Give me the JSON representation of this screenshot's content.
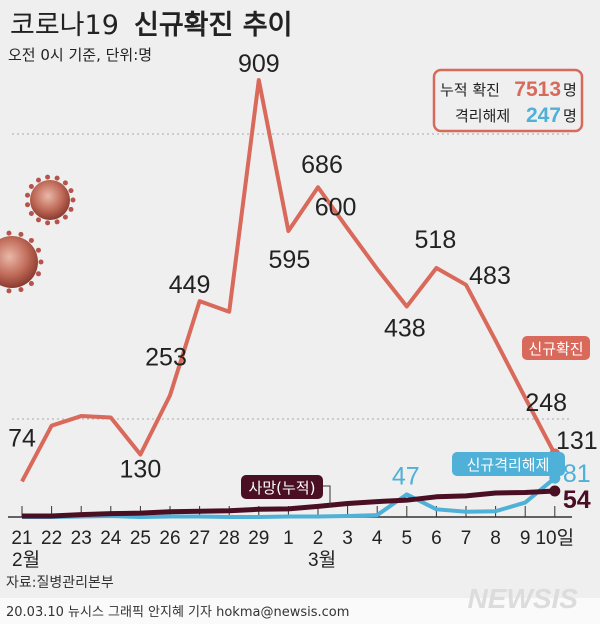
{
  "header": {
    "title_plain": "코로나19",
    "title_bold": "신규확진 추이",
    "subtitle": "오전 0시 기준, 단위:명"
  },
  "summary": {
    "confirmed_label": "누적 확진",
    "confirmed_value": "7513",
    "confirmed_unit": "명",
    "released_label": "격리해제",
    "released_value": "247",
    "released_unit": "명"
  },
  "colors": {
    "confirmed": "#d9695a",
    "released": "#4fb0d8",
    "deaths": "#4a0f23",
    "background": "#efefef"
  },
  "icons": [
    "coronavirus-illustration"
  ],
  "chart_data": {
    "type": "line",
    "title": "코로나19 신규확진 추이",
    "categories": [
      "21",
      "22",
      "23",
      "24",
      "25",
      "26",
      "27",
      "28",
      "29",
      "1",
      "2",
      "3",
      "4",
      "5",
      "6",
      "7",
      "8",
      "9",
      "10일"
    ],
    "month_labels": [
      {
        "index": 0,
        "label": "2월"
      },
      {
        "index": 10,
        "label": "3월"
      }
    ],
    "series": [
      {
        "name": "신규확진",
        "values": [
          74,
          190,
          210,
          207,
          130,
          253,
          449,
          427,
          909,
          595,
          686,
          600,
          516,
          438,
          518,
          483,
          367,
          248,
          131
        ],
        "labels": [
          "74",
          null,
          null,
          null,
          "130",
          "253",
          "449",
          null,
          "909",
          "595",
          "686",
          "600",
          null,
          "438",
          "518",
          "483",
          null,
          "248",
          "131"
        ]
      },
      {
        "name": "신규격리해제",
        "values": [
          0,
          0,
          1,
          2,
          0,
          1,
          1,
          0,
          0,
          1,
          1,
          2,
          4,
          47,
          16,
          11,
          12,
          30,
          81
        ],
        "labels": [
          null,
          null,
          null,
          null,
          null,
          null,
          null,
          null,
          null,
          null,
          null,
          null,
          null,
          "47",
          null,
          null,
          null,
          null,
          "81"
        ]
      },
      {
        "name": "사망(누적)",
        "values": [
          2,
          2,
          5,
          7,
          8,
          11,
          12,
          13,
          16,
          17,
          22,
          28,
          32,
          35,
          42,
          44,
          50,
          51,
          54
        ],
        "labels": [
          null,
          null,
          null,
          null,
          null,
          null,
          null,
          null,
          null,
          null,
          null,
          null,
          null,
          null,
          null,
          null,
          null,
          null,
          "54"
        ]
      }
    ],
    "ylim": [
      0,
      909
    ],
    "grid": true
  },
  "footer": {
    "source": "자료:질병관리본부",
    "credit": "20.03.10 뉴시스 그래픽 안지혜 기자 hokma@newsis.com",
    "logo": "NEWSIS"
  }
}
